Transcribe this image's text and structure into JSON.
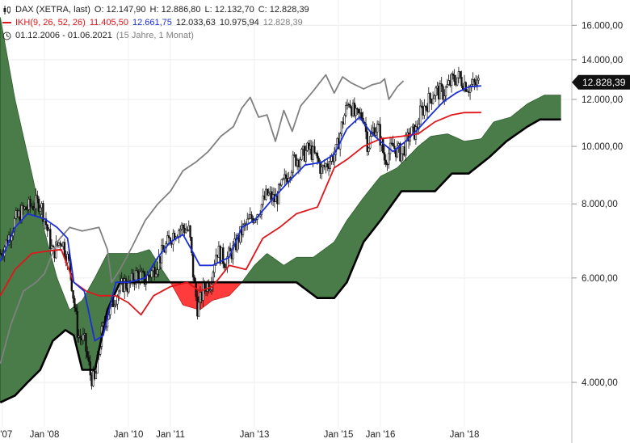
{
  "legend": {
    "instrument": "DAX (XETRA, last)",
    "open": "O: 12.147,90",
    "high": "H: 12.886,80",
    "low": "L: 12.132,70",
    "close": "C: 12.828,39",
    "ikh_label": "IKH(9, 26, 52, 26)",
    "ikh_v1": "11.405,50",
    "ikh_v2": "12.661,75",
    "ikh_v3": "12.033,63",
    "ikh_v4": "10.975,94",
    "ikh_v5": "12.828,39",
    "period": "01.12.2006 - 01.06.2021",
    "period_desc": "(15 Jahre, 1 Monat)"
  },
  "colors": {
    "candles": "#111111",
    "tenkan": "#1a2fd6",
    "kijun": "#e0161a",
    "chikou": "#808080",
    "span_b": "#000000",
    "cloud_bull": "#4a7c4a",
    "cloud_bear": "#ff3b3b",
    "last_price_bg": "#111111"
  },
  "chart_data": {
    "type": "candlestick",
    "scale": "log",
    "ylim": [
      3400,
      17000
    ],
    "y_ticks": [
      {
        "value": 4000,
        "label": "4.000,00"
      },
      {
        "value": 6000,
        "label": "6.000,00"
      },
      {
        "value": 8000,
        "label": "8.000,00"
      },
      {
        "value": 10000,
        "label": "10.000,00"
      },
      {
        "value": 12000,
        "label": "12.000,00"
      },
      {
        "value": 14000,
        "label": "14.000,00"
      },
      {
        "value": 16000,
        "label": "16.000,00"
      }
    ],
    "x_ticks": [
      {
        "t": 2007.0,
        "label": "n '07"
      },
      {
        "t": 2008.0,
        "label": "Jan '08"
      },
      {
        "t": 2010.0,
        "label": "Jan '10"
      },
      {
        "t": 2011.0,
        "label": "Jan '11"
      },
      {
        "t": 2013.0,
        "label": "Jan '13"
      },
      {
        "t": 2015.0,
        "label": "Jan '15"
      },
      {
        "t": 2016.0,
        "label": "Jan '16"
      },
      {
        "t": 2018.0,
        "label": "Jan '18"
      }
    ],
    "last_price": {
      "value": 12828.39,
      "label": "12.828,39"
    },
    "close_series": [
      [
        2006.95,
        6600
      ],
      [
        2007.1,
        6900
      ],
      [
        2007.3,
        7500
      ],
      [
        2007.5,
        7800
      ],
      [
        2007.7,
        7950
      ],
      [
        2007.9,
        8050
      ],
      [
        2008.0,
        7600
      ],
      [
        2008.2,
        6600
      ],
      [
        2008.4,
        7000
      ],
      [
        2008.6,
        6300
      ],
      [
        2008.8,
        4800
      ],
      [
        2008.95,
        4700
      ],
      [
        2009.1,
        4100
      ],
      [
        2009.2,
        4000
      ],
      [
        2009.35,
        4800
      ],
      [
        2009.5,
        5200
      ],
      [
        2009.7,
        5600
      ],
      [
        2009.9,
        5900
      ],
      [
        2010.0,
        5800
      ],
      [
        2010.2,
        6100
      ],
      [
        2010.4,
        5950
      ],
      [
        2010.6,
        6200
      ],
      [
        2010.8,
        6600
      ],
      [
        2010.95,
        6900
      ],
      [
        2011.1,
        7200
      ],
      [
        2011.3,
        7300
      ],
      [
        2011.45,
        7200
      ],
      [
        2011.55,
        6000
      ],
      [
        2011.65,
        5300
      ],
      [
        2011.8,
        5800
      ],
      [
        2011.95,
        5900
      ],
      [
        2012.1,
        6700
      ],
      [
        2012.3,
        6400
      ],
      [
        2012.5,
        6700
      ],
      [
        2012.7,
        7200
      ],
      [
        2012.95,
        7600
      ],
      [
        2013.1,
        7800
      ],
      [
        2013.3,
        8300
      ],
      [
        2013.5,
        8100
      ],
      [
        2013.7,
        8700
      ],
      [
        2013.95,
        9500
      ],
      [
        2014.1,
        9600
      ],
      [
        2014.3,
        9900
      ],
      [
        2014.5,
        9500
      ],
      [
        2014.6,
        9100
      ],
      [
        2014.8,
        9500
      ],
      [
        2014.95,
        9800
      ],
      [
        2015.1,
        11000
      ],
      [
        2015.25,
        12000
      ],
      [
        2015.4,
        11200
      ],
      [
        2015.6,
        11300
      ],
      [
        2015.7,
        10000
      ],
      [
        2015.85,
        10800
      ],
      [
        2015.95,
        10700
      ],
      [
        2016.1,
        9500
      ],
      [
        2016.3,
        10000
      ],
      [
        2016.5,
        9700
      ],
      [
        2016.7,
        10500
      ],
      [
        2016.85,
        10600
      ],
      [
        2016.95,
        11400
      ],
      [
        2017.1,
        11800
      ],
      [
        2017.3,
        12400
      ],
      [
        2017.5,
        12300
      ],
      [
        2017.7,
        12900
      ],
      [
        2017.85,
        13100
      ],
      [
        2017.95,
        12900
      ],
      [
        2018.1,
        12600
      ],
      [
        2018.25,
        12700
      ],
      [
        2018.35,
        12800
      ]
    ],
    "tenkan_series": [
      [
        2006.95,
        6400
      ],
      [
        2007.3,
        7300
      ],
      [
        2007.6,
        7700
      ],
      [
        2008.0,
        7550
      ],
      [
        2008.3,
        7300
      ],
      [
        2008.55,
        7000
      ],
      [
        2008.7,
        5900
      ],
      [
        2008.95,
        5700
      ],
      [
        2009.2,
        4700
      ],
      [
        2009.4,
        4800
      ],
      [
        2009.7,
        5900
      ],
      [
        2010.0,
        5900
      ],
      [
        2010.4,
        6000
      ],
      [
        2010.7,
        6500
      ],
      [
        2011.0,
        6900
      ],
      [
        2011.3,
        7100
      ],
      [
        2011.5,
        6700
      ],
      [
        2011.7,
        6300
      ],
      [
        2012.0,
        6300
      ],
      [
        2012.4,
        6500
      ],
      [
        2012.7,
        7300
      ],
      [
        2013.0,
        7500
      ],
      [
        2013.4,
        8100
      ],
      [
        2013.8,
        8700
      ],
      [
        2014.2,
        9300
      ],
      [
        2014.6,
        9400
      ],
      [
        2014.9,
        9700
      ],
      [
        2015.2,
        10700
      ],
      [
        2015.5,
        11200
      ],
      [
        2015.8,
        10500
      ],
      [
        2016.0,
        10200
      ],
      [
        2016.3,
        9800
      ],
      [
        2016.6,
        10200
      ],
      [
        2016.9,
        10700
      ],
      [
        2017.2,
        11300
      ],
      [
        2017.5,
        11900
      ],
      [
        2017.8,
        12300
      ],
      [
        2018.1,
        12600
      ],
      [
        2018.4,
        12650
      ]
    ],
    "kijun_series": [
      [
        2006.95,
        5600
      ],
      [
        2007.3,
        6200
      ],
      [
        2007.7,
        6600
      ],
      [
        2008.0,
        6650
      ],
      [
        2008.4,
        6700
      ],
      [
        2008.7,
        5900
      ],
      [
        2009.0,
        5700
      ],
      [
        2009.3,
        5600
      ],
      [
        2009.7,
        5600
      ],
      [
        2010.0,
        5450
      ],
      [
        2010.3,
        5200
      ],
      [
        2010.6,
        5600
      ],
      [
        2011.0,
        5800
      ],
      [
        2011.4,
        5900
      ],
      [
        2011.7,
        5700
      ],
      [
        2012.0,
        5800
      ],
      [
        2012.4,
        6300
      ],
      [
        2012.8,
        6200
      ],
      [
        2013.2,
        7000
      ],
      [
        2013.6,
        7300
      ],
      [
        2014.0,
        7700
      ],
      [
        2014.5,
        7900
      ],
      [
        2014.9,
        9200
      ],
      [
        2015.2,
        9500
      ],
      [
        2015.6,
        10000
      ],
      [
        2016.0,
        10300
      ],
      [
        2016.5,
        10400
      ],
      [
        2016.9,
        10500
      ],
      [
        2017.3,
        11000
      ],
      [
        2017.7,
        11300
      ],
      [
        2018.0,
        11400
      ],
      [
        2018.4,
        11405
      ]
    ],
    "chikou_series": [
      [
        2006.95,
        4300
      ],
      [
        2007.2,
        5000
      ],
      [
        2007.5,
        5700
      ],
      [
        2007.8,
        5900
      ],
      [
        2008.0,
        6100
      ],
      [
        2008.3,
        6900
      ],
      [
        2008.6,
        7300
      ],
      [
        2008.9,
        7200
      ],
      [
        2009.3,
        7300
      ],
      [
        2009.5,
        6700
      ],
      [
        2009.6,
        5900
      ],
      [
        2009.8,
        6200
      ],
      [
        2010.1,
        6800
      ],
      [
        2010.4,
        7500
      ],
      [
        2010.7,
        8000
      ],
      [
        2011.0,
        8400
      ],
      [
        2011.3,
        9100
      ],
      [
        2011.6,
        9400
      ],
      [
        2011.9,
        9800
      ],
      [
        2012.2,
        10400
      ],
      [
        2012.5,
        10800
      ],
      [
        2012.7,
        11600
      ],
      [
        2012.9,
        12100
      ],
      [
        2013.1,
        11200
      ],
      [
        2013.3,
        11300
      ],
      [
        2013.5,
        10200
      ],
      [
        2013.7,
        11500
      ],
      [
        2013.9,
        10600
      ],
      [
        2014.1,
        11700
      ],
      [
        2014.4,
        12400
      ],
      [
        2014.7,
        13200
      ],
      [
        2014.9,
        12300
      ],
      [
        2015.1,
        13100
      ],
      [
        2015.3,
        12800
      ],
      [
        2015.6,
        12500
      ],
      [
        2015.8,
        12700
      ],
      [
        2016.0,
        12800
      ],
      [
        2016.1,
        13000
      ],
      [
        2016.2,
        12000
      ],
      [
        2016.4,
        12600
      ],
      [
        2016.55,
        12900
      ]
    ],
    "span_b_series": [
      [
        2006.95,
        3700
      ],
      [
        2007.3,
        3800
      ],
      [
        2007.6,
        4000
      ],
      [
        2007.9,
        4200
      ],
      [
        2008.2,
        4700
      ],
      [
        2008.5,
        4900
      ],
      [
        2008.7,
        4800
      ],
      [
        2008.9,
        4200
      ],
      [
        2009.2,
        4200
      ],
      [
        2009.5,
        5300
      ],
      [
        2009.8,
        5900
      ],
      [
        2010.2,
        5900
      ],
      [
        2010.7,
        5900
      ],
      [
        2011.0,
        5900
      ],
      [
        2011.3,
        5900
      ],
      [
        2011.7,
        5900
      ],
      [
        2012.0,
        5900
      ],
      [
        2012.5,
        5900
      ],
      [
        2013.0,
        5900
      ],
      [
        2013.5,
        5900
      ],
      [
        2014.0,
        5900
      ],
      [
        2014.5,
        5550
      ],
      [
        2014.9,
        5550
      ],
      [
        2015.2,
        5900
      ],
      [
        2015.6,
        6900
      ],
      [
        2016.0,
        7500
      ],
      [
        2016.5,
        8400
      ],
      [
        2016.9,
        8400
      ],
      [
        2017.3,
        8400
      ],
      [
        2017.7,
        9000
      ],
      [
        2018.1,
        9000
      ],
      [
        2018.6,
        9600
      ],
      [
        2019.0,
        10200
      ],
      [
        2019.5,
        10800
      ],
      [
        2019.8,
        11100
      ],
      [
        2020.3,
        11100
      ]
    ],
    "span_a_series": [
      [
        2006.95,
        16500
      ],
      [
        2007.3,
        12000
      ],
      [
        2007.7,
        9000
      ],
      [
        2008.0,
        7200
      ],
      [
        2008.3,
        6000
      ],
      [
        2008.6,
        5300
      ],
      [
        2008.9,
        5500
      ],
      [
        2009.2,
        6000
      ],
      [
        2009.5,
        6600
      ],
      [
        2009.8,
        6600
      ],
      [
        2010.2,
        6600
      ],
      [
        2010.5,
        6700
      ],
      [
        2010.8,
        6200
      ],
      [
        2011.0,
        5900
      ],
      [
        2011.3,
        5400
      ],
      [
        2011.7,
        5300
      ],
      [
        2012.0,
        5500
      ],
      [
        2012.4,
        5600
      ],
      [
        2012.7,
        5900
      ],
      [
        2013.0,
        6300
      ],
      [
        2013.3,
        6600
      ],
      [
        2013.7,
        6300
      ],
      [
        2014.0,
        6500
      ],
      [
        2014.4,
        6500
      ],
      [
        2014.9,
        6900
      ],
      [
        2015.2,
        7500
      ],
      [
        2015.6,
        8200
      ],
      [
        2016.0,
        8900
      ],
      [
        2016.4,
        9200
      ],
      [
        2016.9,
        10000
      ],
      [
        2017.2,
        10400
      ],
      [
        2017.6,
        10500
      ],
      [
        2018.0,
        10200
      ],
      [
        2018.4,
        10300
      ],
      [
        2018.7,
        11000
      ],
      [
        2019.1,
        11200
      ],
      [
        2019.5,
        11800
      ],
      [
        2019.9,
        12200
      ],
      [
        2020.3,
        12200
      ]
    ]
  }
}
